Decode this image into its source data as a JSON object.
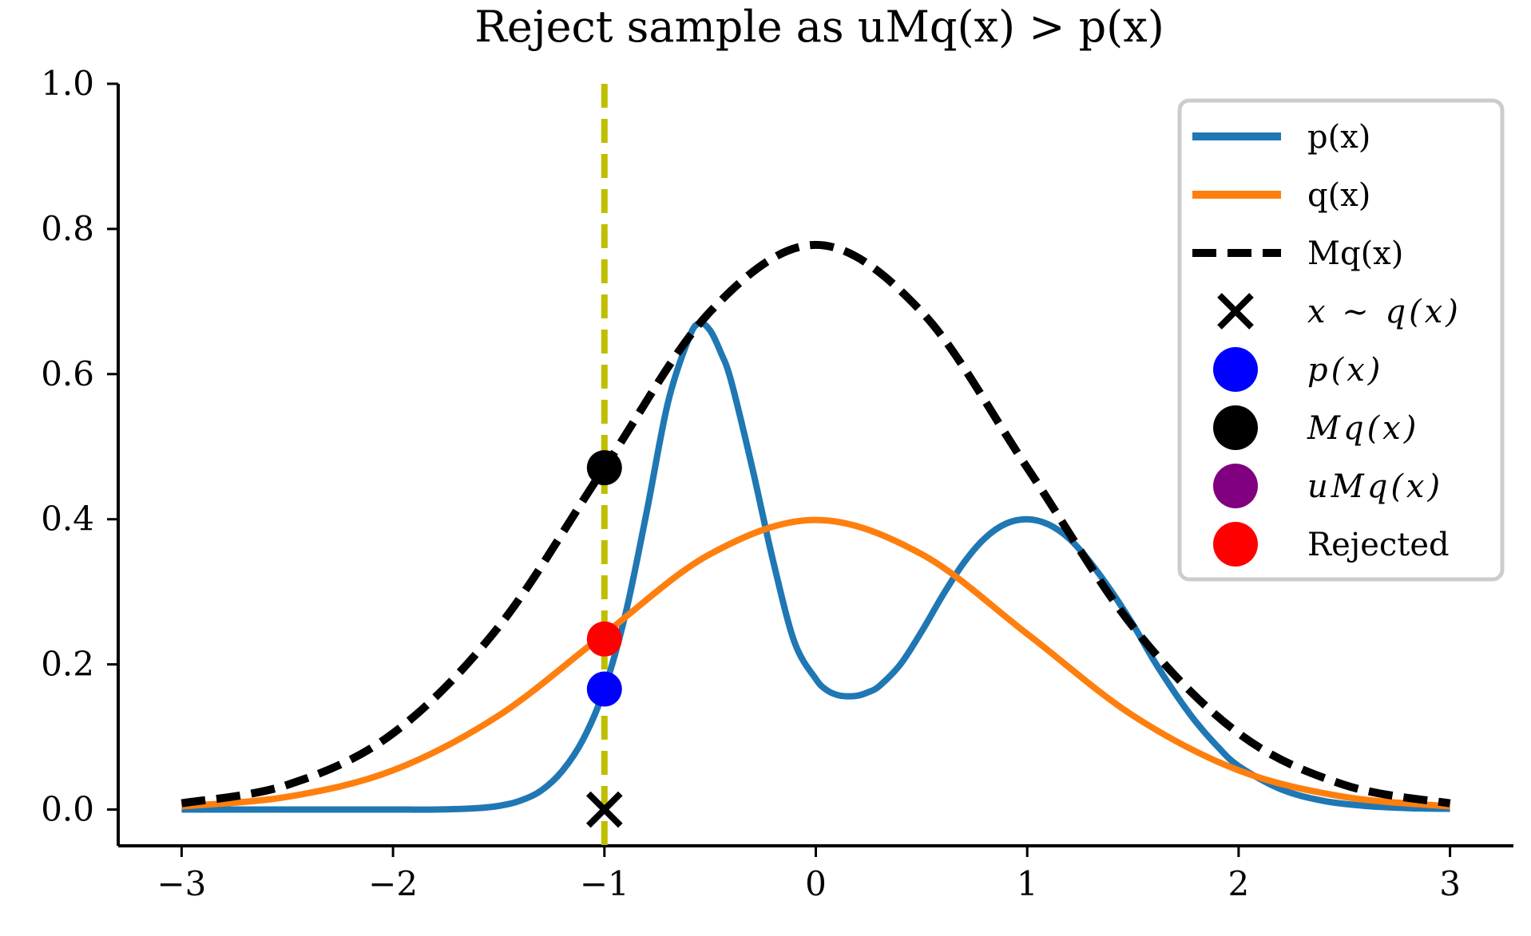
{
  "chart_data": {
    "type": "line",
    "title": "Reject sample as uMq(x) > p(x)",
    "xlabel": "",
    "ylabel": "",
    "xlim": [
      -3.3,
      3.3
    ],
    "ylim": [
      -0.05,
      1.0
    ],
    "x_ticks": [
      -3,
      -2,
      -1,
      0,
      1,
      2,
      3
    ],
    "x_tick_labels": [
      "−3",
      "−2",
      "−1",
      "0",
      "1",
      "2",
      "3"
    ],
    "y_ticks": [
      0.0,
      0.2,
      0.4,
      0.6,
      0.8,
      1.0
    ],
    "y_tick_labels": [
      "0.0",
      "0.2",
      "0.4",
      "0.6",
      "0.8",
      "1.0"
    ],
    "grid": false,
    "legend_position": "top-right",
    "series": [
      {
        "name": "p(x)",
        "color": "#1f77b4",
        "style": "solid",
        "x": [
          -3.0,
          -2.5,
          -2.0,
          -1.8,
          -1.6,
          -1.5,
          -1.4,
          -1.3,
          -1.2,
          -1.1,
          -1.0,
          -0.9,
          -0.8,
          -0.7,
          -0.6,
          -0.55,
          -0.5,
          -0.45,
          -0.4,
          -0.3,
          -0.2,
          -0.1,
          0.0,
          0.05,
          0.1,
          0.15,
          0.2,
          0.25,
          0.3,
          0.4,
          0.5,
          0.6,
          0.7,
          0.8,
          0.9,
          1.0,
          1.1,
          1.2,
          1.3,
          1.4,
          1.5,
          1.6,
          1.7,
          1.8,
          1.9,
          2.0,
          2.2,
          2.4,
          2.6,
          2.8,
          3.0
        ],
        "y": [
          0.0,
          0.0,
          0.0,
          0.0,
          0.002,
          0.005,
          0.012,
          0.026,
          0.053,
          0.097,
          0.166,
          0.27,
          0.41,
          0.56,
          0.65,
          0.67,
          0.66,
          0.63,
          0.59,
          0.47,
          0.34,
          0.23,
          0.18,
          0.165,
          0.158,
          0.156,
          0.157,
          0.162,
          0.17,
          0.2,
          0.245,
          0.295,
          0.34,
          0.374,
          0.394,
          0.4,
          0.393,
          0.373,
          0.34,
          0.3,
          0.255,
          0.205,
          0.16,
          0.12,
          0.087,
          0.06,
          0.028,
          0.012,
          0.005,
          0.002,
          0.001
        ]
      },
      {
        "name": "q(x)",
        "color": "#ff7f0e",
        "style": "solid",
        "x": [
          -3.0,
          -2.5,
          -2.0,
          -1.5,
          -1.0,
          -0.5,
          0.0,
          0.5,
          1.0,
          1.5,
          2.0,
          2.5,
          3.0
        ],
        "y": [
          0.0044,
          0.0175,
          0.054,
          0.1295,
          0.242,
          0.352,
          0.399,
          0.352,
          0.242,
          0.1295,
          0.054,
          0.0175,
          0.0044
        ]
      },
      {
        "name": "Mq(x)",
        "color": "#000000",
        "style": "dashed",
        "x": [
          -3.0,
          -2.5,
          -2.0,
          -1.5,
          -1.0,
          -0.5,
          0.0,
          0.5,
          1.0,
          1.5,
          2.0,
          2.5,
          3.0
        ],
        "y": [
          0.0086,
          0.034,
          0.105,
          0.252,
          0.471,
          0.686,
          0.778,
          0.686,
          0.471,
          0.252,
          0.105,
          0.034,
          0.0086
        ]
      }
    ],
    "vertical_line": {
      "x": -1.0,
      "color": "#bfbf00",
      "style": "dashed"
    },
    "points": [
      {
        "name": "x ~ q(x)",
        "x": -1.0,
        "y": 0.0,
        "marker": "x",
        "color": "#000000"
      },
      {
        "name": "Rejected",
        "x": -1.0,
        "y": 0.235,
        "marker": "o",
        "color": "#ff0000"
      },
      {
        "name": "p(x)",
        "x": -1.0,
        "y": 0.166,
        "marker": "o",
        "color": "#0000ff"
      },
      {
        "name": "Mq(x)",
        "x": -1.0,
        "y": 0.471,
        "marker": "o",
        "color": "#000000"
      }
    ],
    "legend": [
      {
        "label": "p(x)",
        "kind": "line",
        "color": "#1f77b4",
        "math": false
      },
      {
        "label": "q(x)",
        "kind": "line",
        "color": "#ff7f0e",
        "math": false
      },
      {
        "label": "Mq(x)",
        "kind": "dashed",
        "color": "#000000",
        "math": false
      },
      {
        "label": "x ∼ q(x)",
        "kind": "x",
        "color": "#000000",
        "math": true
      },
      {
        "label": "p(x)",
        "kind": "dot",
        "color": "#0000ff",
        "math": true
      },
      {
        "label": "Mq(x)",
        "kind": "dot",
        "color": "#000000",
        "math": true
      },
      {
        "label": "uMq(x)",
        "kind": "dot",
        "color": "#800080",
        "math": true
      },
      {
        "label": "Rejected",
        "kind": "dot",
        "color": "#ff0000",
        "math": false
      }
    ]
  }
}
